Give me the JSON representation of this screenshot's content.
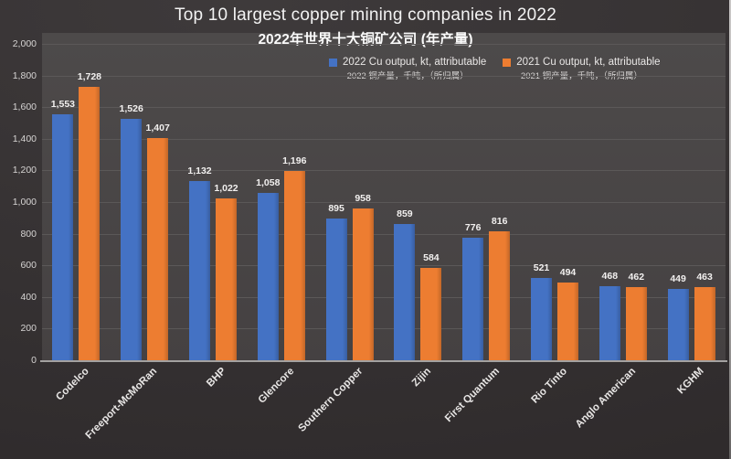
{
  "title": "Top 10 largest copper mining companies in 2022",
  "subtitle": "2022年世界十大铜矿公司 (年产量)",
  "legend": [
    {
      "label": "2022 Cu output, kt, attributable",
      "sublabel": "2022 铜产量，千吨，（所归属）",
      "color": "#4472C4"
    },
    {
      "label": "2021 Cu output, kt, attributable",
      "sublabel": "2021 铜产量，千吨，（所归属）",
      "color": "#ED7D31"
    }
  ],
  "colors": {
    "series_2022": "#4472C4",
    "series_2021": "#ED7D31",
    "plot_background": "#4b4848",
    "page_background": "#363233",
    "gridline": "#5b5858",
    "axis_line": "#a3a1a0",
    "text": "#f2f2f2"
  },
  "chart_data": {
    "type": "bar",
    "title": "Top 10 largest copper mining companies in 2022",
    "subtitle": "2022年世界十大铜矿公司 (年产量)",
    "categories": [
      "Codelco",
      "Freeport-McMoRan",
      "BHP",
      "Glencore",
      "Southern Copper",
      "Zijin",
      "First Quantum",
      "Rio Tinto",
      "Anglo American",
      "KGHM"
    ],
    "series": [
      {
        "name": "2022 Cu output, kt, attributable",
        "color": "#4472C4",
        "values": [
          1553,
          1526,
          1132,
          1058,
          895,
          859,
          776,
          521,
          468,
          449
        ],
        "labels": [
          "1,553",
          "1,526",
          "1,132",
          "1,058",
          "895",
          "859",
          "776",
          "521",
          "468",
          "449"
        ]
      },
      {
        "name": "2021 Cu output, kt, attributable",
        "color": "#ED7D31",
        "values": [
          1728,
          1407,
          1022,
          1196,
          958,
          584,
          816,
          494,
          462,
          463
        ],
        "labels": [
          "1,728",
          "1,407",
          "1,022",
          "1,196",
          "958",
          "584",
          "816",
          "494",
          "462",
          "463"
        ]
      }
    ],
    "xlabel": "",
    "ylabel": "",
    "ylim": [
      0,
      2000
    ],
    "ytick_step": 200,
    "ytick_labels": [
      "0",
      "200",
      "400",
      "600",
      "800",
      "1,000",
      "1,200",
      "1,400",
      "1,600",
      "1,800",
      "2,000"
    ],
    "grid": true,
    "legend_position": "top-right",
    "category_label_rotation_deg": -45
  }
}
